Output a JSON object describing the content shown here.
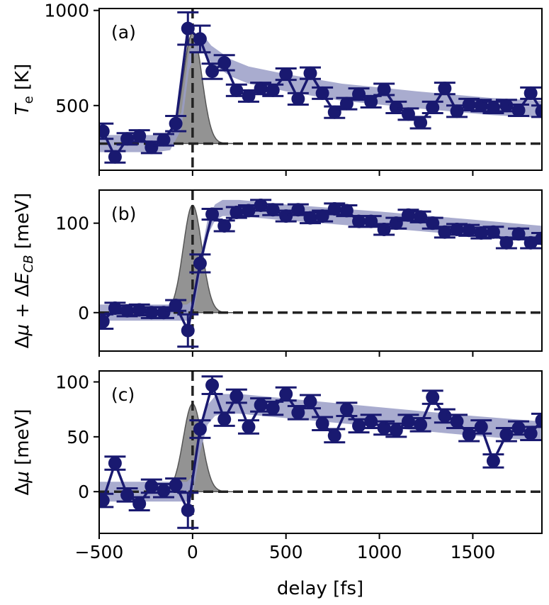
{
  "colors": {
    "series": "#191970",
    "band": "#9a9ec7",
    "pump": "#808080",
    "baseline": "#222222"
  },
  "figure": {
    "xlabel": "delay [fs]"
  },
  "chart_data": [
    {
      "type": "line",
      "panel_label": "(a)",
      "ylabel_main": "T",
      "ylabel_sub": "e",
      "ylabel_unit": " [K]",
      "xlim": [
        -500,
        1870
      ],
      "ylim": [
        160,
        1010
      ],
      "xticks": [
        -500,
        0,
        500,
        1000,
        1500
      ],
      "yticks": [
        500,
        1000
      ],
      "ytick_labels": [
        "500",
        "1000"
      ],
      "show_xtick_labels": false,
      "baseline": 300,
      "pump": {
        "center": 0,
        "sigma": 50,
        "amplitude": 580
      },
      "x": [
        -480,
        -415,
        -350,
        -285,
        -220,
        -155,
        -90,
        -25,
        40,
        105,
        170,
        235,
        300,
        365,
        430,
        500,
        565,
        630,
        695,
        760,
        825,
        890,
        955,
        1025,
        1090,
        1155,
        1220,
        1285,
        1350,
        1415,
        1480,
        1545,
        1610,
        1680,
        1745,
        1810,
        1870
      ],
      "values": [
        365,
        230,
        325,
        340,
        280,
        320,
        405,
        905,
        850,
        680,
        725,
        580,
        550,
        590,
        580,
        665,
        535,
        670,
        565,
        465,
        510,
        560,
        520,
        585,
        490,
        455,
        410,
        490,
        590,
        470,
        505,
        500,
        490,
        500,
        475,
        565,
        470
      ],
      "errors": [
        40,
        30,
        30,
        30,
        30,
        30,
        40,
        85,
        70,
        40,
        40,
        30,
        30,
        30,
        30,
        30,
        30,
        30,
        30,
        30,
        30,
        30,
        30,
        30,
        30,
        30,
        30,
        30,
        30,
        30,
        30,
        30,
        30,
        30,
        30,
        30,
        30
      ],
      "fit_x": [
        -500,
        -200,
        -120,
        -60,
        -20,
        20,
        60,
        100,
        200,
        300,
        500,
        800,
        1200,
        1600,
        1870
      ],
      "fit_y": [
        300,
        300,
        310,
        420,
        730,
        830,
        820,
        770,
        700,
        660,
        620,
        570,
        530,
        495,
        480
      ],
      "band_halfwidth": 45
    },
    {
      "type": "line",
      "panel_label": "(b)",
      "ylabel": "Δμ + ΔE_CB [meV]",
      "ylabel_parts": [
        "Δ",
        "μ",
        " + Δ",
        "E",
        "CB",
        " [meV]"
      ],
      "xlim": [
        -500,
        1870
      ],
      "ylim": [
        -43,
        137
      ],
      "xticks": [
        -500,
        0,
        500,
        1000,
        1500
      ],
      "yticks": [
        0,
        100
      ],
      "ytick_labels": [
        "0",
        "100"
      ],
      "show_xtick_labels": false,
      "baseline": 0,
      "pump": {
        "center": 0,
        "sigma": 50,
        "amplitude": 120
      },
      "x": [
        -480,
        -415,
        -350,
        -285,
        -220,
        -155,
        -90,
        -25,
        40,
        105,
        170,
        235,
        300,
        365,
        430,
        500,
        565,
        630,
        695,
        760,
        825,
        890,
        955,
        1025,
        1090,
        1155,
        1220,
        1285,
        1350,
        1415,
        1480,
        1545,
        1610,
        1680,
        1745,
        1810,
        1870
      ],
      "values": [
        -10,
        5,
        2,
        3,
        0,
        0,
        8,
        -20,
        55,
        110,
        97,
        112,
        114,
        120,
        115,
        108,
        115,
        106,
        108,
        116,
        114,
        102,
        102,
        93,
        100,
        109,
        107,
        100,
        90,
        93,
        92,
        89,
        90,
        78,
        88,
        78,
        83
      ],
      "errors": [
        8,
        6,
        6,
        6,
        6,
        6,
        6,
        18,
        10,
        6,
        6,
        6,
        6,
        6,
        6,
        6,
        6,
        6,
        6,
        6,
        6,
        6,
        6,
        6,
        6,
        6,
        6,
        6,
        6,
        6,
        6,
        6,
        6,
        6,
        6,
        6,
        6
      ],
      "fit_x": [
        -500,
        -30,
        0,
        40,
        80,
        120,
        160,
        250,
        500,
        1000,
        1500,
        1870
      ],
      "fit_y": [
        0,
        0,
        5,
        50,
        95,
        112,
        117,
        117,
        112,
        104,
        95,
        88
      ],
      "band_halfwidth": 9
    },
    {
      "type": "line",
      "panel_label": "(c)",
      "ylabel": "Δμ [meV]",
      "ylabel_parts": [
        "Δ",
        "μ",
        " [meV]"
      ],
      "xlim": [
        -500,
        1870
      ],
      "ylim": [
        -38,
        110
      ],
      "xticks": [
        -500,
        0,
        500,
        1000,
        1500
      ],
      "yticks": [
        0,
        50,
        100
      ],
      "ytick_labels": [
        "0",
        "50",
        "100"
      ],
      "show_xtick_labels": true,
      "xtick_labels": [
        "−500",
        "0",
        "500",
        "1000",
        "1500"
      ],
      "baseline": 0,
      "pump": {
        "center": 0,
        "sigma": 50,
        "amplitude": 80
      },
      "x": [
        -480,
        -415,
        -350,
        -285,
        -220,
        -155,
        -90,
        -25,
        40,
        105,
        170,
        235,
        300,
        365,
        430,
        500,
        565,
        630,
        695,
        760,
        825,
        890,
        955,
        1025,
        1090,
        1155,
        1220,
        1285,
        1350,
        1415,
        1480,
        1545,
        1610,
        1680,
        1745,
        1810,
        1870
      ],
      "values": [
        -8,
        26,
        -3,
        -11,
        5,
        1,
        6,
        -17,
        57,
        97,
        66,
        87,
        59,
        79,
        76,
        89,
        72,
        82,
        62,
        51,
        75,
        60,
        64,
        58,
        56,
        64,
        61,
        86,
        69,
        64,
        52,
        59,
        28,
        52,
        58,
        53,
        65
      ],
      "errors": [
        6,
        6,
        6,
        6,
        6,
        6,
        6,
        16,
        8,
        8,
        6,
        6,
        6,
        6,
        6,
        6,
        6,
        6,
        6,
        6,
        6,
        6,
        6,
        6,
        6,
        6,
        6,
        6,
        6,
        6,
        6,
        6,
        6,
        6,
        6,
        6,
        6
      ],
      "fit_x": [
        -500,
        -30,
        0,
        40,
        80,
        120,
        160,
        250,
        500,
        1000,
        1500,
        1870
      ],
      "fit_y": [
        0,
        0,
        5,
        45,
        70,
        78,
        80,
        80,
        76,
        68,
        60,
        55
      ],
      "band_halfwidth": 9
    }
  ]
}
